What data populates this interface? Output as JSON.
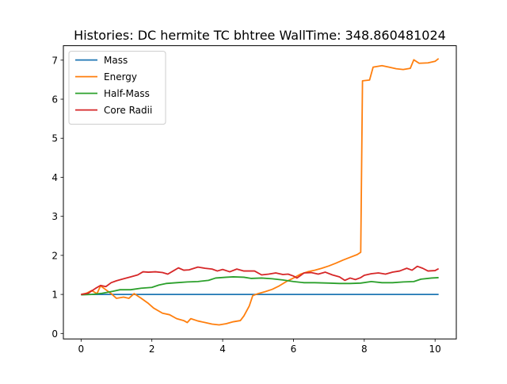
{
  "chart_data": {
    "type": "line",
    "title": "Histories: DC hermite TC bhtree WallTime: 348.860481024",
    "xlabel": "",
    "ylabel": "",
    "xlim": [
      -0.5,
      10.6
    ],
    "ylim": [
      -0.14,
      7.37
    ],
    "xticks": [
      0,
      2,
      4,
      6,
      8,
      10
    ],
    "yticks": [
      0,
      1,
      2,
      3,
      4,
      5,
      6,
      7
    ],
    "grid": false,
    "legend_position": "top-left",
    "series": [
      {
        "name": "Mass",
        "color": "#1f77b4",
        "points": [
          [
            0,
            1.0
          ],
          [
            10.1,
            1.0
          ]
        ]
      },
      {
        "name": "Energy",
        "color": "#ff7f0e",
        "points": [
          [
            0.0,
            1.0
          ],
          [
            0.15,
            1.03
          ],
          [
            0.3,
            1.1
          ],
          [
            0.45,
            1.02
          ],
          [
            0.55,
            1.22
          ],
          [
            0.7,
            1.12
          ],
          [
            0.85,
            1.02
          ],
          [
            1.0,
            0.9
          ],
          [
            1.2,
            0.93
          ],
          [
            1.35,
            0.9
          ],
          [
            1.5,
            1.02
          ],
          [
            1.7,
            0.9
          ],
          [
            1.9,
            0.77
          ],
          [
            2.05,
            0.65
          ],
          [
            2.3,
            0.52
          ],
          [
            2.5,
            0.48
          ],
          [
            2.7,
            0.38
          ],
          [
            2.9,
            0.33
          ],
          [
            3.0,
            0.28
          ],
          [
            3.1,
            0.38
          ],
          [
            3.3,
            0.32
          ],
          [
            3.5,
            0.28
          ],
          [
            3.7,
            0.24
          ],
          [
            3.9,
            0.22
          ],
          [
            4.1,
            0.25
          ],
          [
            4.3,
            0.3
          ],
          [
            4.5,
            0.33
          ],
          [
            4.6,
            0.45
          ],
          [
            4.75,
            0.7
          ],
          [
            4.85,
            0.97
          ],
          [
            5.0,
            1.02
          ],
          [
            5.2,
            1.07
          ],
          [
            5.4,
            1.13
          ],
          [
            5.6,
            1.22
          ],
          [
            5.8,
            1.33
          ],
          [
            6.0,
            1.42
          ],
          [
            6.2,
            1.52
          ],
          [
            6.4,
            1.58
          ],
          [
            6.6,
            1.62
          ],
          [
            6.8,
            1.67
          ],
          [
            7.0,
            1.73
          ],
          [
            7.2,
            1.8
          ],
          [
            7.4,
            1.88
          ],
          [
            7.6,
            1.95
          ],
          [
            7.8,
            2.02
          ],
          [
            7.9,
            2.08
          ],
          [
            7.95,
            6.47
          ],
          [
            8.15,
            6.49
          ],
          [
            8.25,
            6.82
          ],
          [
            8.5,
            6.86
          ],
          [
            8.7,
            6.82
          ],
          [
            8.9,
            6.78
          ],
          [
            9.1,
            6.76
          ],
          [
            9.3,
            6.79
          ],
          [
            9.4,
            7.01
          ],
          [
            9.55,
            6.92
          ],
          [
            9.8,
            6.93
          ],
          [
            10.0,
            6.97
          ],
          [
            10.1,
            7.04
          ]
        ]
      },
      {
        "name": "Half-Mass",
        "color": "#2ca02c",
        "points": [
          [
            0.0,
            0.99
          ],
          [
            0.3,
            1.0
          ],
          [
            0.6,
            1.03
          ],
          [
            0.9,
            1.08
          ],
          [
            1.1,
            1.12
          ],
          [
            1.4,
            1.12
          ],
          [
            1.7,
            1.16
          ],
          [
            2.0,
            1.18
          ],
          [
            2.2,
            1.24
          ],
          [
            2.4,
            1.28
          ],
          [
            2.7,
            1.3
          ],
          [
            3.0,
            1.32
          ],
          [
            3.3,
            1.33
          ],
          [
            3.6,
            1.36
          ],
          [
            3.8,
            1.42
          ],
          [
            4.1,
            1.44
          ],
          [
            4.3,
            1.45
          ],
          [
            4.6,
            1.44
          ],
          [
            4.8,
            1.41
          ],
          [
            5.1,
            1.42
          ],
          [
            5.4,
            1.4
          ],
          [
            5.7,
            1.37
          ],
          [
            6.0,
            1.33
          ],
          [
            6.3,
            1.3
          ],
          [
            6.6,
            1.3
          ],
          [
            7.0,
            1.29
          ],
          [
            7.3,
            1.28
          ],
          [
            7.6,
            1.28
          ],
          [
            7.9,
            1.29
          ],
          [
            8.2,
            1.33
          ],
          [
            8.5,
            1.3
          ],
          [
            8.8,
            1.3
          ],
          [
            9.1,
            1.32
          ],
          [
            9.4,
            1.33
          ],
          [
            9.6,
            1.39
          ],
          [
            9.9,
            1.42
          ],
          [
            10.1,
            1.43
          ]
        ]
      },
      {
        "name": "Core Radii",
        "color": "#d62728",
        "points": [
          [
            0.0,
            1.0
          ],
          [
            0.2,
            1.03
          ],
          [
            0.4,
            1.15
          ],
          [
            0.55,
            1.23
          ],
          [
            0.7,
            1.2
          ],
          [
            0.85,
            1.3
          ],
          [
            1.0,
            1.35
          ],
          [
            1.2,
            1.4
          ],
          [
            1.4,
            1.45
          ],
          [
            1.6,
            1.5
          ],
          [
            1.75,
            1.58
          ],
          [
            1.9,
            1.57
          ],
          [
            2.1,
            1.58
          ],
          [
            2.3,
            1.56
          ],
          [
            2.45,
            1.52
          ],
          [
            2.6,
            1.6
          ],
          [
            2.75,
            1.68
          ],
          [
            2.9,
            1.62
          ],
          [
            3.05,
            1.63
          ],
          [
            3.3,
            1.7
          ],
          [
            3.5,
            1.67
          ],
          [
            3.7,
            1.65
          ],
          [
            3.85,
            1.6
          ],
          [
            4.0,
            1.64
          ],
          [
            4.2,
            1.58
          ],
          [
            4.4,
            1.65
          ],
          [
            4.6,
            1.6
          ],
          [
            4.9,
            1.6
          ],
          [
            5.1,
            1.5
          ],
          [
            5.3,
            1.52
          ],
          [
            5.5,
            1.55
          ],
          [
            5.7,
            1.51
          ],
          [
            5.85,
            1.52
          ],
          [
            6.0,
            1.47
          ],
          [
            6.1,
            1.42
          ],
          [
            6.3,
            1.55
          ],
          [
            6.5,
            1.56
          ],
          [
            6.7,
            1.52
          ],
          [
            6.9,
            1.57
          ],
          [
            7.1,
            1.5
          ],
          [
            7.3,
            1.45
          ],
          [
            7.45,
            1.36
          ],
          [
            7.6,
            1.42
          ],
          [
            7.75,
            1.38
          ],
          [
            7.9,
            1.43
          ],
          [
            8.0,
            1.49
          ],
          [
            8.2,
            1.53
          ],
          [
            8.4,
            1.55
          ],
          [
            8.6,
            1.52
          ],
          [
            8.8,
            1.57
          ],
          [
            9.0,
            1.6
          ],
          [
            9.2,
            1.67
          ],
          [
            9.35,
            1.62
          ],
          [
            9.5,
            1.72
          ],
          [
            9.65,
            1.67
          ],
          [
            9.8,
            1.6
          ],
          [
            10.0,
            1.61
          ],
          [
            10.1,
            1.66
          ]
        ]
      }
    ]
  }
}
